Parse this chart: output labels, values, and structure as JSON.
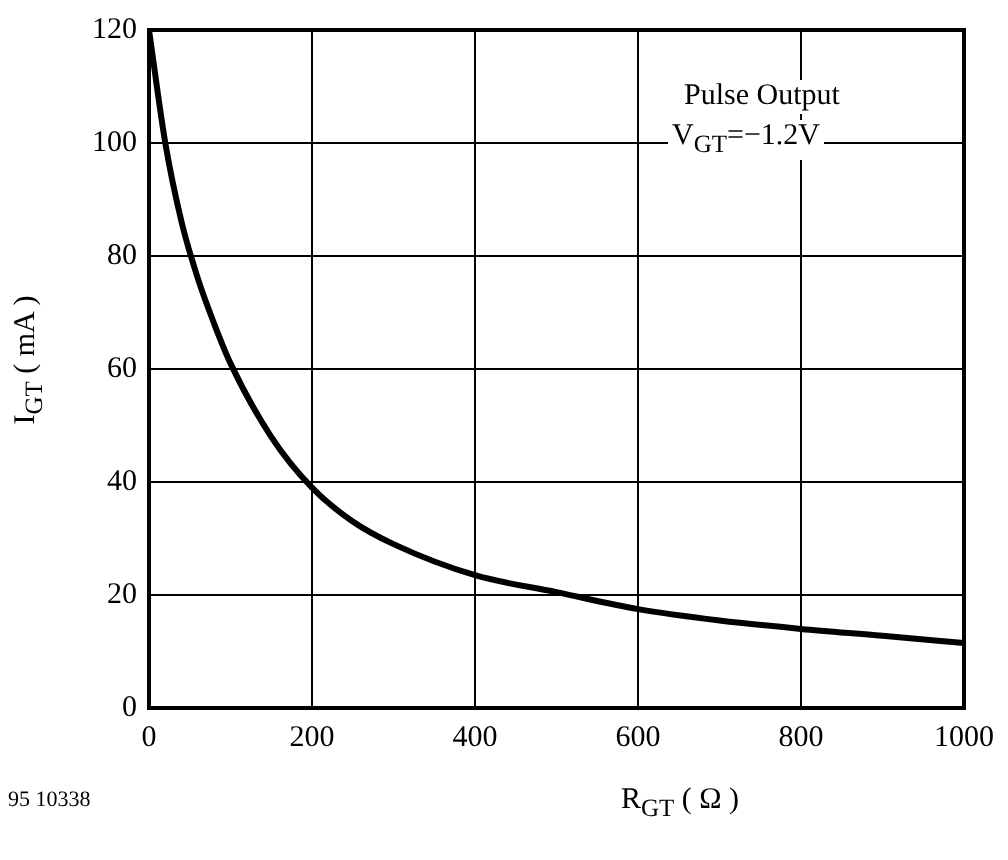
{
  "chart_data": {
    "type": "line",
    "xlabel": "R$_{GT}$ ( Ω )",
    "ylabel": "I$_{GT}$ ( mA )",
    "annotations": [
      "Pulse Output",
      "V$_{GT}$=−1.2V",
      "95 10338"
    ],
    "x": [
      0,
      20,
      40,
      60,
      80,
      100,
      150,
      200,
      250,
      300,
      400,
      500,
      600,
      700,
      800,
      900,
      1000
    ],
    "series": [
      {
        "color": "#000000",
        "values": [
          120,
          100,
          86,
          76,
          68,
          61,
          48,
          39,
          33,
          29,
          23.5,
          20.5,
          17.5,
          15.5,
          14,
          12.8,
          11.5
        ]
      }
    ],
    "xlim": [
      0,
      1000
    ],
    "xticks": [
      0,
      200,
      400,
      600,
      800,
      1000
    ],
    "ylim": [
      0,
      120
    ],
    "yticks": [
      0,
      20,
      40,
      60,
      80,
      100,
      120
    ],
    "grid": true,
    "legend": false,
    "marker": "none",
    "line_style": "solid"
  }
}
